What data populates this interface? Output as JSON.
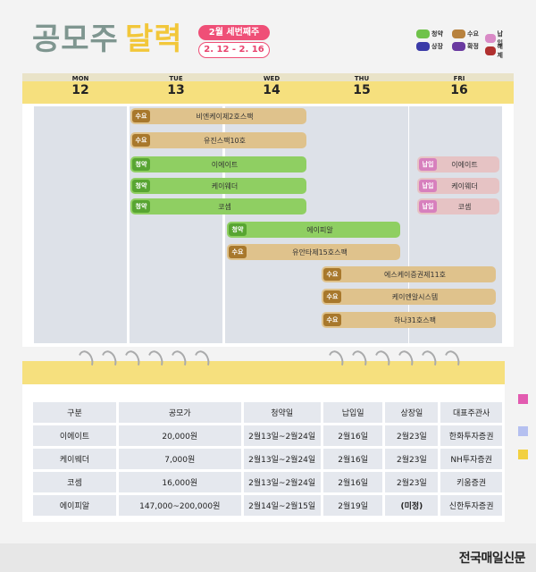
{
  "header": {
    "title_main": "공모주",
    "title_accent": "달력",
    "week_badge": "2월 세번째주",
    "date_range": "2. 12 - 2. 16"
  },
  "legend": [
    {
      "label": "청약",
      "color": "#6fc24a"
    },
    {
      "label": "수요",
      "color": "#b8823e"
    },
    {
      "label": "납입",
      "color": "#d98ac6"
    },
    {
      "label": "상장",
      "color": "#3b3ba8"
    },
    {
      "label": "확정",
      "color": "#6a3aa0"
    },
    {
      "label": "해제",
      "color": "#b0302f"
    }
  ],
  "calendar": {
    "days": [
      {
        "name": "MON",
        "num": "12"
      },
      {
        "name": "TUE",
        "num": "13"
      },
      {
        "name": "WED",
        "num": "14"
      },
      {
        "name": "THU",
        "num": "15"
      },
      {
        "name": "FRI",
        "num": "16"
      }
    ],
    "events": [
      {
        "tag": "수요",
        "name": "비엔케이제2호스팩"
      },
      {
        "tag": "수요",
        "name": "유진스팩10호"
      },
      {
        "tag": "청약",
        "name": "이에이트"
      },
      {
        "tag": "청약",
        "name": "케이웨더"
      },
      {
        "tag": "청약",
        "name": "코셈"
      },
      {
        "tag": "청약",
        "name": "에이피알"
      },
      {
        "tag": "수요",
        "name": "유안타제15호스팩"
      },
      {
        "tag": "수요",
        "name": "에스케이증권제11호"
      },
      {
        "tag": "수요",
        "name": "케이엔알시스템"
      },
      {
        "tag": "수요",
        "name": "하나31호스팩"
      },
      {
        "tag": "납입",
        "name": "이에이트"
      },
      {
        "tag": "납입",
        "name": "케이웨더"
      },
      {
        "tag": "납입",
        "name": "코셈"
      }
    ]
  },
  "table": {
    "headers": [
      "구분",
      "공모가",
      "청약일",
      "납입일",
      "상장일",
      "대표주관사"
    ],
    "rows": [
      [
        "이에이트",
        "20,000원",
        "2월13일~2월24일",
        "2월16일",
        "2월23일",
        "한화투자증권"
      ],
      [
        "케이웨더",
        "7,000원",
        "2월13일~2월24일",
        "2월16일",
        "2월23일",
        "NH투자증권"
      ],
      [
        "코셈",
        "16,000원",
        "2월13일~2월24일",
        "2월16일",
        "2월23일",
        "키움증권"
      ],
      [
        "에이피알",
        "147,000~200,000원",
        "2월14일~2월15일",
        "2월19일",
        "(미정)",
        "신한투자증권"
      ]
    ]
  },
  "side_tabs": [
    {
      "color": "#e25bb0"
    },
    {
      "color": "#b5c0f0"
    },
    {
      "color": "#f2d040"
    }
  ],
  "footer": {
    "logo": "전국매일신문"
  }
}
